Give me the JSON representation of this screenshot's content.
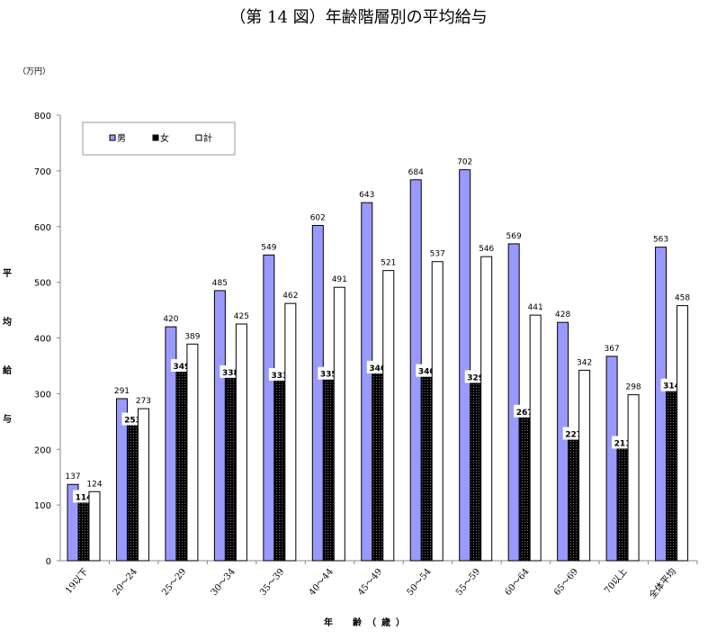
{
  "chart_data": {
    "type": "bar",
    "title": "（第 14 図）年齢階層別の平均給与",
    "unit": "（万円）",
    "ylabel": "平均給与",
    "xlabel": "年　齢（歳）",
    "ylim": [
      0,
      800
    ],
    "yticks": [
      0,
      100,
      200,
      300,
      400,
      500,
      600,
      700,
      800
    ],
    "categories": [
      "19以下",
      "20～24",
      "25～29",
      "30～34",
      "35～39",
      "40～44",
      "45～49",
      "50～54",
      "55～59",
      "60～64",
      "65～69",
      "70以上",
      "全体平均"
    ],
    "series": [
      {
        "name": "男",
        "color": "#9999ff",
        "values": [
          137,
          291,
          420,
          485,
          549,
          602,
          643,
          684,
          702,
          569,
          428,
          367,
          563
        ]
      },
      {
        "name": "女",
        "color": "#000000",
        "values": [
          114,
          253,
          349,
          338,
          333,
          335,
          346,
          340,
          329,
          267,
          227,
          211,
          314
        ]
      },
      {
        "name": "計",
        "color": "#ffffff",
        "values": [
          124,
          273,
          389,
          425,
          462,
          491,
          521,
          537,
          546,
          441,
          342,
          298,
          458
        ]
      }
    ],
    "legend_position": "top-left",
    "grid": false
  }
}
